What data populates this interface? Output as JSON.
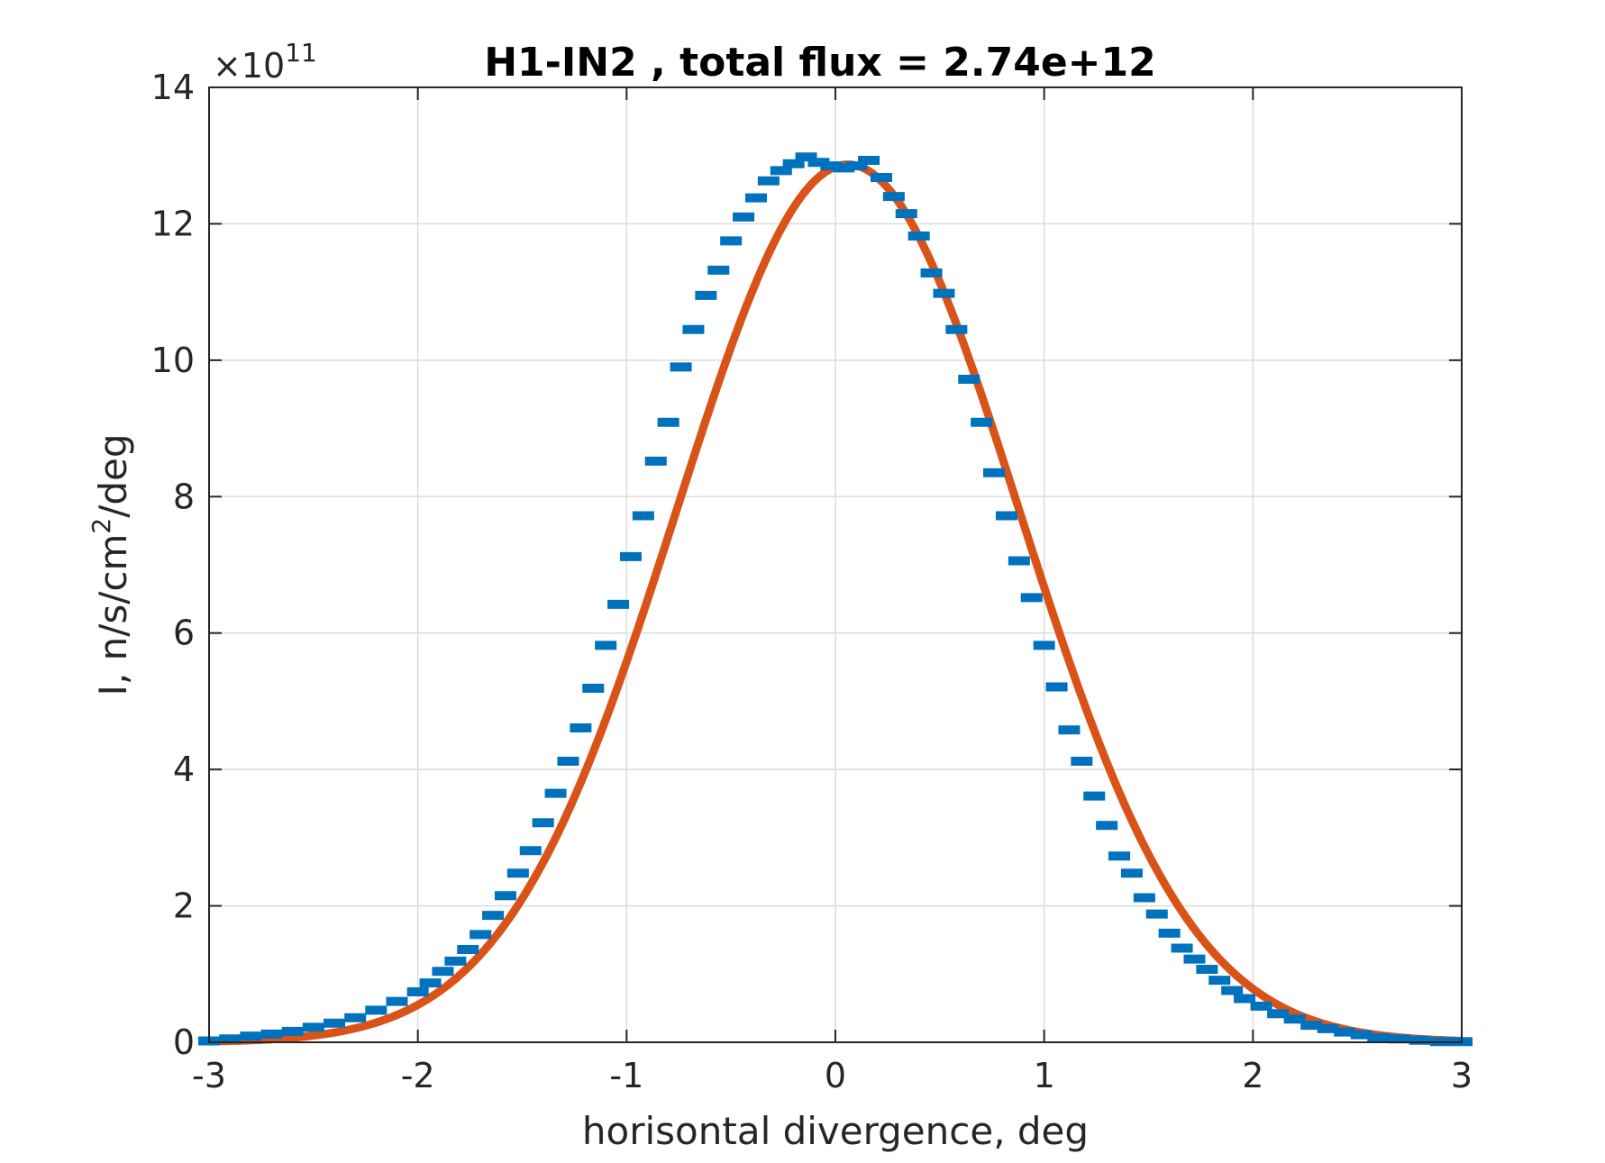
{
  "chart_data": {
    "type": "line",
    "title": "H1-IN2 , total flux =  2.74e+12",
    "xlabel": "horisontal divergence, deg",
    "ylabel": "I, n/s/cm",
    "ylabel_sup": "2",
    "ylabel_suffix": "/deg",
    "y_exponent": {
      "base": "×10",
      "power": "11"
    },
    "xlim": [
      -3,
      3
    ],
    "ylim": [
      0,
      14
    ],
    "xticks": [
      "-3",
      "-2",
      "-1",
      "0",
      "1",
      "2",
      "3"
    ],
    "yticks": [
      "0",
      "2",
      "4",
      "6",
      "8",
      "10",
      "12",
      "14"
    ],
    "grid": true,
    "colors": {
      "data": "#0072BD",
      "fit": "#D95319",
      "grid": "#dcdcdc",
      "axis": "#262626"
    },
    "series": [
      {
        "kind": "errorbar",
        "x": [
          -3.0,
          -2.9,
          -2.8,
          -2.7,
          -2.6,
          -2.5,
          -2.4,
          -2.3,
          -2.2,
          -2.1,
          -2.0,
          -1.94,
          -1.88,
          -1.82,
          -1.76,
          -1.7,
          -1.64,
          -1.58,
          -1.52,
          -1.46,
          -1.4,
          -1.34,
          -1.28,
          -1.22,
          -1.16,
          -1.1,
          -1.04,
          -0.98,
          -0.92,
          -0.86,
          -0.8,
          -0.74,
          -0.68,
          -0.62,
          -0.56,
          -0.5,
          -0.44,
          -0.38,
          -0.32,
          -0.26,
          -0.2,
          -0.14,
          -0.08,
          -0.02,
          0.04,
          0.1,
          0.16,
          0.22,
          0.28,
          0.34,
          0.4,
          0.46,
          0.52,
          0.58,
          0.64,
          0.7,
          0.76,
          0.82,
          0.88,
          0.94,
          1.0,
          1.06,
          1.12,
          1.18,
          1.24,
          1.3,
          1.36,
          1.42,
          1.48,
          1.54,
          1.6,
          1.66,
          1.72,
          1.78,
          1.84,
          1.9,
          1.96,
          2.04,
          2.12,
          2.2,
          2.28,
          2.36,
          2.44,
          2.52,
          2.6,
          2.7,
          2.8,
          2.9,
          3.0
        ],
        "y": [
          0.02,
          0.05,
          0.09,
          0.12,
          0.16,
          0.22,
          0.28,
          0.36,
          0.47,
          0.6,
          0.74,
          0.87,
          1.04,
          1.19,
          1.36,
          1.58,
          1.86,
          2.15,
          2.48,
          2.81,
          3.22,
          3.65,
          4.12,
          4.61,
          5.19,
          5.82,
          6.42,
          7.12,
          7.72,
          8.52,
          9.09,
          9.9,
          10.45,
          10.95,
          11.32,
          11.75,
          12.1,
          12.38,
          12.63,
          12.78,
          12.88,
          12.98,
          12.9,
          12.85,
          12.82,
          12.85,
          12.93,
          12.68,
          12.4,
          12.15,
          11.82,
          11.28,
          10.98,
          10.45,
          9.72,
          9.09,
          8.35,
          7.72,
          7.06,
          6.52,
          5.82,
          5.21,
          4.58,
          4.12,
          3.61,
          3.18,
          2.73,
          2.48,
          2.12,
          1.88,
          1.6,
          1.38,
          1.22,
          1.07,
          0.91,
          0.76,
          0.64,
          0.53,
          0.42,
          0.34,
          0.25,
          0.2,
          0.15,
          0.11,
          0.07,
          0.05,
          0.03,
          0.01,
          0.01
        ]
      },
      {
        "kind": "fit",
        "form": "Gaussian",
        "amplitude": 12.87,
        "center": 0.06,
        "sigma": 0.82
      }
    ]
  }
}
